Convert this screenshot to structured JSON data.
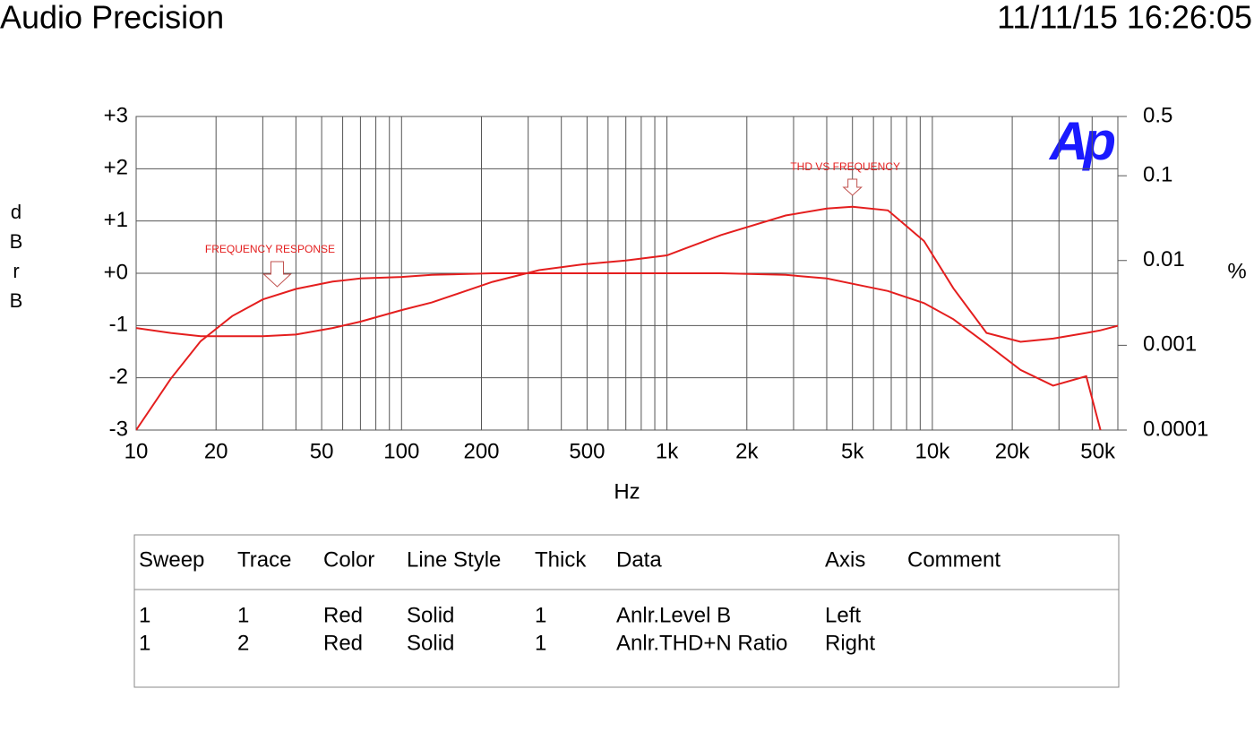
{
  "header": {
    "title": "Audio Precision",
    "timestamp": "11/11/15 16:26:05"
  },
  "chart_data": {
    "type": "line",
    "xlabel": "Hz",
    "ylabel": "dBr B",
    "y2label": "%",
    "logo": "Ap",
    "x_log": true,
    "y2_log": true,
    "grid": true,
    "xlim": [
      10,
      50000
    ],
    "xticks": [
      10,
      20,
      50,
      100,
      200,
      500,
      {
        "value": 1000,
        "label": "1k"
      },
      {
        "value": 2000,
        "label": "2k"
      },
      {
        "value": 5000,
        "label": "5k"
      },
      {
        "value": 10000,
        "label": "10k"
      },
      {
        "value": 20000,
        "label": "20k"
      },
      {
        "value": 50000,
        "label": "50k"
      }
    ],
    "xgrid": [
      10,
      20,
      30,
      40,
      50,
      60,
      70,
      80,
      90,
      100,
      200,
      300,
      400,
      500,
      600,
      700,
      800,
      900,
      1000,
      2000,
      3000,
      4000,
      5000,
      6000,
      7000,
      8000,
      9000,
      10000,
      20000,
      30000,
      40000,
      50000
    ],
    "ylim": [
      -3,
      3
    ],
    "yticks": [
      {
        "value": 3,
        "label": "+3"
      },
      {
        "value": 2,
        "label": "+2"
      },
      {
        "value": 1,
        "label": "+1"
      },
      {
        "value": 0,
        "label": "+0"
      },
      -1,
      -2,
      -3
    ],
    "y2lim": [
      0.0001,
      0.5
    ],
    "y2ticks": [
      0.5,
      0.1,
      0.01,
      0.001,
      0.0001
    ],
    "x": [
      10,
      13.5,
      17.5,
      23,
      30,
      40,
      55,
      70,
      100,
      130,
      220,
      330,
      480,
      700,
      1000,
      1600,
      2800,
      4000,
      5000,
      6800,
      9300,
      12000,
      16000,
      21500,
      28500,
      38000,
      43000,
      50000
    ],
    "series": [
      {
        "name": "Anlr.Level B",
        "color": "#e41e1e",
        "values": [
          -3,
          -2.02,
          -1.3,
          -0.82,
          -0.5,
          -0.3,
          -0.16,
          -0.1,
          -0.07,
          -0.03,
          0,
          0,
          0,
          0,
          0,
          0,
          -0.03,
          -0.1,
          -0.2,
          -0.34,
          -0.57,
          -0.88,
          -1.35,
          -1.85,
          -2.15,
          -1.97,
          -3,
          null
        ]
      },
      {
        "name": "Anlr.THD+N Ratio",
        "color": "#e41e1e",
        "axis": "y2",
        "values": [
          0.0016,
          0.0014,
          0.00128,
          0.00128,
          0.00128,
          0.00134,
          0.0016,
          0.0019,
          0.0026,
          0.0032,
          0.0056,
          0.0077,
          0.009,
          0.01,
          0.0115,
          0.02,
          0.034,
          0.041,
          0.043,
          0.039,
          0.017,
          0.0047,
          0.0014,
          0.0011,
          0.0012,
          0.0014,
          0.0015,
          0.0017
        ]
      }
    ],
    "annotations": [
      {
        "text": "FREQUENCY RESPONSE",
        "x": 34
      },
      {
        "text": "THD VS FREQUENCY",
        "x": 5000
      }
    ]
  },
  "table": {
    "columns": [
      "Sweep",
      "Trace",
      "Color",
      "Line Style",
      "Thick",
      "Data",
      "Axis",
      "Comment"
    ],
    "rows": [
      [
        "1",
        "1",
        "Red",
        "Solid",
        "1",
        "Anlr.Level B",
        "Left"
      ],
      [
        "1",
        "2",
        "Red",
        "Solid",
        "1",
        "Anlr.THD+N Ratio",
        "Right"
      ]
    ]
  }
}
